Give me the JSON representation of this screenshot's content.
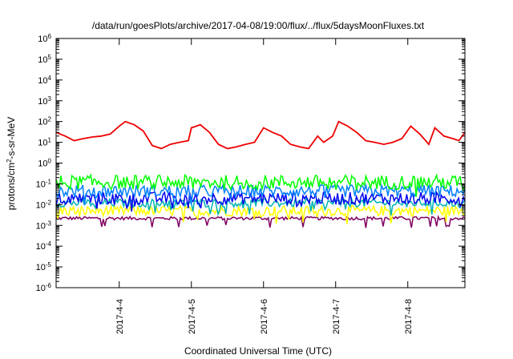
{
  "chart_data": {
    "type": "line",
    "title": "/data/run/goesPlots/archive/2017-04-08/19:00/flux/../flux/5daysMoonFluxes.txt",
    "xlabel": "Coordinated Universal Time (UTC)",
    "ylabel": {
      "prefix": "protons/cm",
      "sup": "2",
      "suffix": "-s-sr-MeV"
    },
    "yscale": "log",
    "ylim": [
      1e-06,
      1000000.0
    ],
    "y_ticks": [
      {
        "value": 1e-06,
        "base": "10",
        "exp": "-6"
      },
      {
        "value": 1e-05,
        "base": "10",
        "exp": "-5"
      },
      {
        "value": 0.0001,
        "base": "10",
        "exp": "-4"
      },
      {
        "value": 0.001,
        "base": "10",
        "exp": "-3"
      },
      {
        "value": 0.01,
        "base": "10",
        "exp": "-2"
      },
      {
        "value": 0.1,
        "base": "10",
        "exp": "-1"
      },
      {
        "value": 1,
        "base": "10",
        "exp": "0"
      },
      {
        "value": 10,
        "base": "10",
        "exp": "1"
      },
      {
        "value": 100,
        "base": "10",
        "exp": "2"
      },
      {
        "value": 1000.0,
        "base": "10",
        "exp": "3"
      },
      {
        "value": 10000.0,
        "base": "10",
        "exp": "4"
      },
      {
        "value": 100000.0,
        "base": "10",
        "exp": "5"
      },
      {
        "value": 1000000.0,
        "base": "10",
        "exp": "6"
      }
    ],
    "xlim": [
      "2017-04-03T03:00",
      "2017-04-08T19:00"
    ],
    "x_ticks": [
      {
        "value": "2017-04-04T00:00",
        "label": "2017-4-4"
      },
      {
        "value": "2017-04-05T00:00",
        "label": "2017-4-5"
      },
      {
        "value": "2017-04-06T00:00",
        "label": "2017-4-6"
      },
      {
        "value": "2017-04-07T00:00",
        "label": "2017-4-7"
      },
      {
        "value": "2017-04-08T00:00",
        "label": "2017-4-8"
      }
    ],
    "grid": false,
    "legend": "none",
    "series": [
      {
        "color": "#ee0000",
        "points": [
          [
            "2017-04-03T03:00",
            30
          ],
          [
            "2017-04-03T06:00",
            20
          ],
          [
            "2017-04-03T09:00",
            12
          ],
          [
            "2017-04-03T12:00",
            15
          ],
          [
            "2017-04-03T15:00",
            18
          ],
          [
            "2017-04-03T18:00",
            20
          ],
          [
            "2017-04-03T21:00",
            25
          ],
          [
            "2017-04-04T00:00",
            60
          ],
          [
            "2017-04-04T02:00",
            100
          ],
          [
            "2017-04-04T05:00",
            70
          ],
          [
            "2017-04-04T08:00",
            35
          ],
          [
            "2017-04-04T11:00",
            7
          ],
          [
            "2017-04-04T14:00",
            5
          ],
          [
            "2017-04-04T17:00",
            8
          ],
          [
            "2017-04-04T20:00",
            10
          ],
          [
            "2017-04-04T23:00",
            12
          ],
          [
            "2017-04-05T00:00",
            50
          ],
          [
            "2017-04-05T03:00",
            70
          ],
          [
            "2017-04-05T06:00",
            30
          ],
          [
            "2017-04-05T09:00",
            8
          ],
          [
            "2017-04-05T12:00",
            5
          ],
          [
            "2017-04-05T15:00",
            6
          ],
          [
            "2017-04-05T18:00",
            8
          ],
          [
            "2017-04-05T21:00",
            10
          ],
          [
            "2017-04-06T00:00",
            50
          ],
          [
            "2017-04-06T03:00",
            30
          ],
          [
            "2017-04-06T06:00",
            20
          ],
          [
            "2017-04-06T09:00",
            8
          ],
          [
            "2017-04-06T12:00",
            6
          ],
          [
            "2017-04-06T15:00",
            5
          ],
          [
            "2017-04-06T18:00",
            20
          ],
          [
            "2017-04-06T20:00",
            10
          ],
          [
            "2017-04-06T23:00",
            20
          ],
          [
            "2017-04-07T01:00",
            100
          ],
          [
            "2017-04-07T04:00",
            60
          ],
          [
            "2017-04-07T07:00",
            30
          ],
          [
            "2017-04-07T10:00",
            12
          ],
          [
            "2017-04-07T13:00",
            10
          ],
          [
            "2017-04-07T16:00",
            8
          ],
          [
            "2017-04-07T19:00",
            10
          ],
          [
            "2017-04-07T22:00",
            15
          ],
          [
            "2017-04-08T01:00",
            60
          ],
          [
            "2017-04-08T04:00",
            25
          ],
          [
            "2017-04-08T07:00",
            8
          ],
          [
            "2017-04-08T09:00",
            50
          ],
          [
            "2017-04-08T12:00",
            20
          ],
          [
            "2017-04-08T15:00",
            15
          ],
          [
            "2017-04-08T17:00",
            12
          ],
          [
            "2017-04-08T19:00",
            30
          ]
        ]
      },
      {
        "color": "#00ff00",
        "level": 0.12,
        "spread": 0.35
      },
      {
        "color": "#0080ff",
        "level": 0.045,
        "spread": 0.3
      },
      {
        "color": "#0000ee",
        "level": 0.02,
        "spread": 0.3
      },
      {
        "color": "#00b3b3",
        "level": 0.012,
        "spread": 0.2
      },
      {
        "color": "#ffff00",
        "level": 0.005,
        "spread": 0.25
      },
      {
        "color": "#800060",
        "level": 0.0022,
        "spread": 0.08
      }
    ]
  }
}
